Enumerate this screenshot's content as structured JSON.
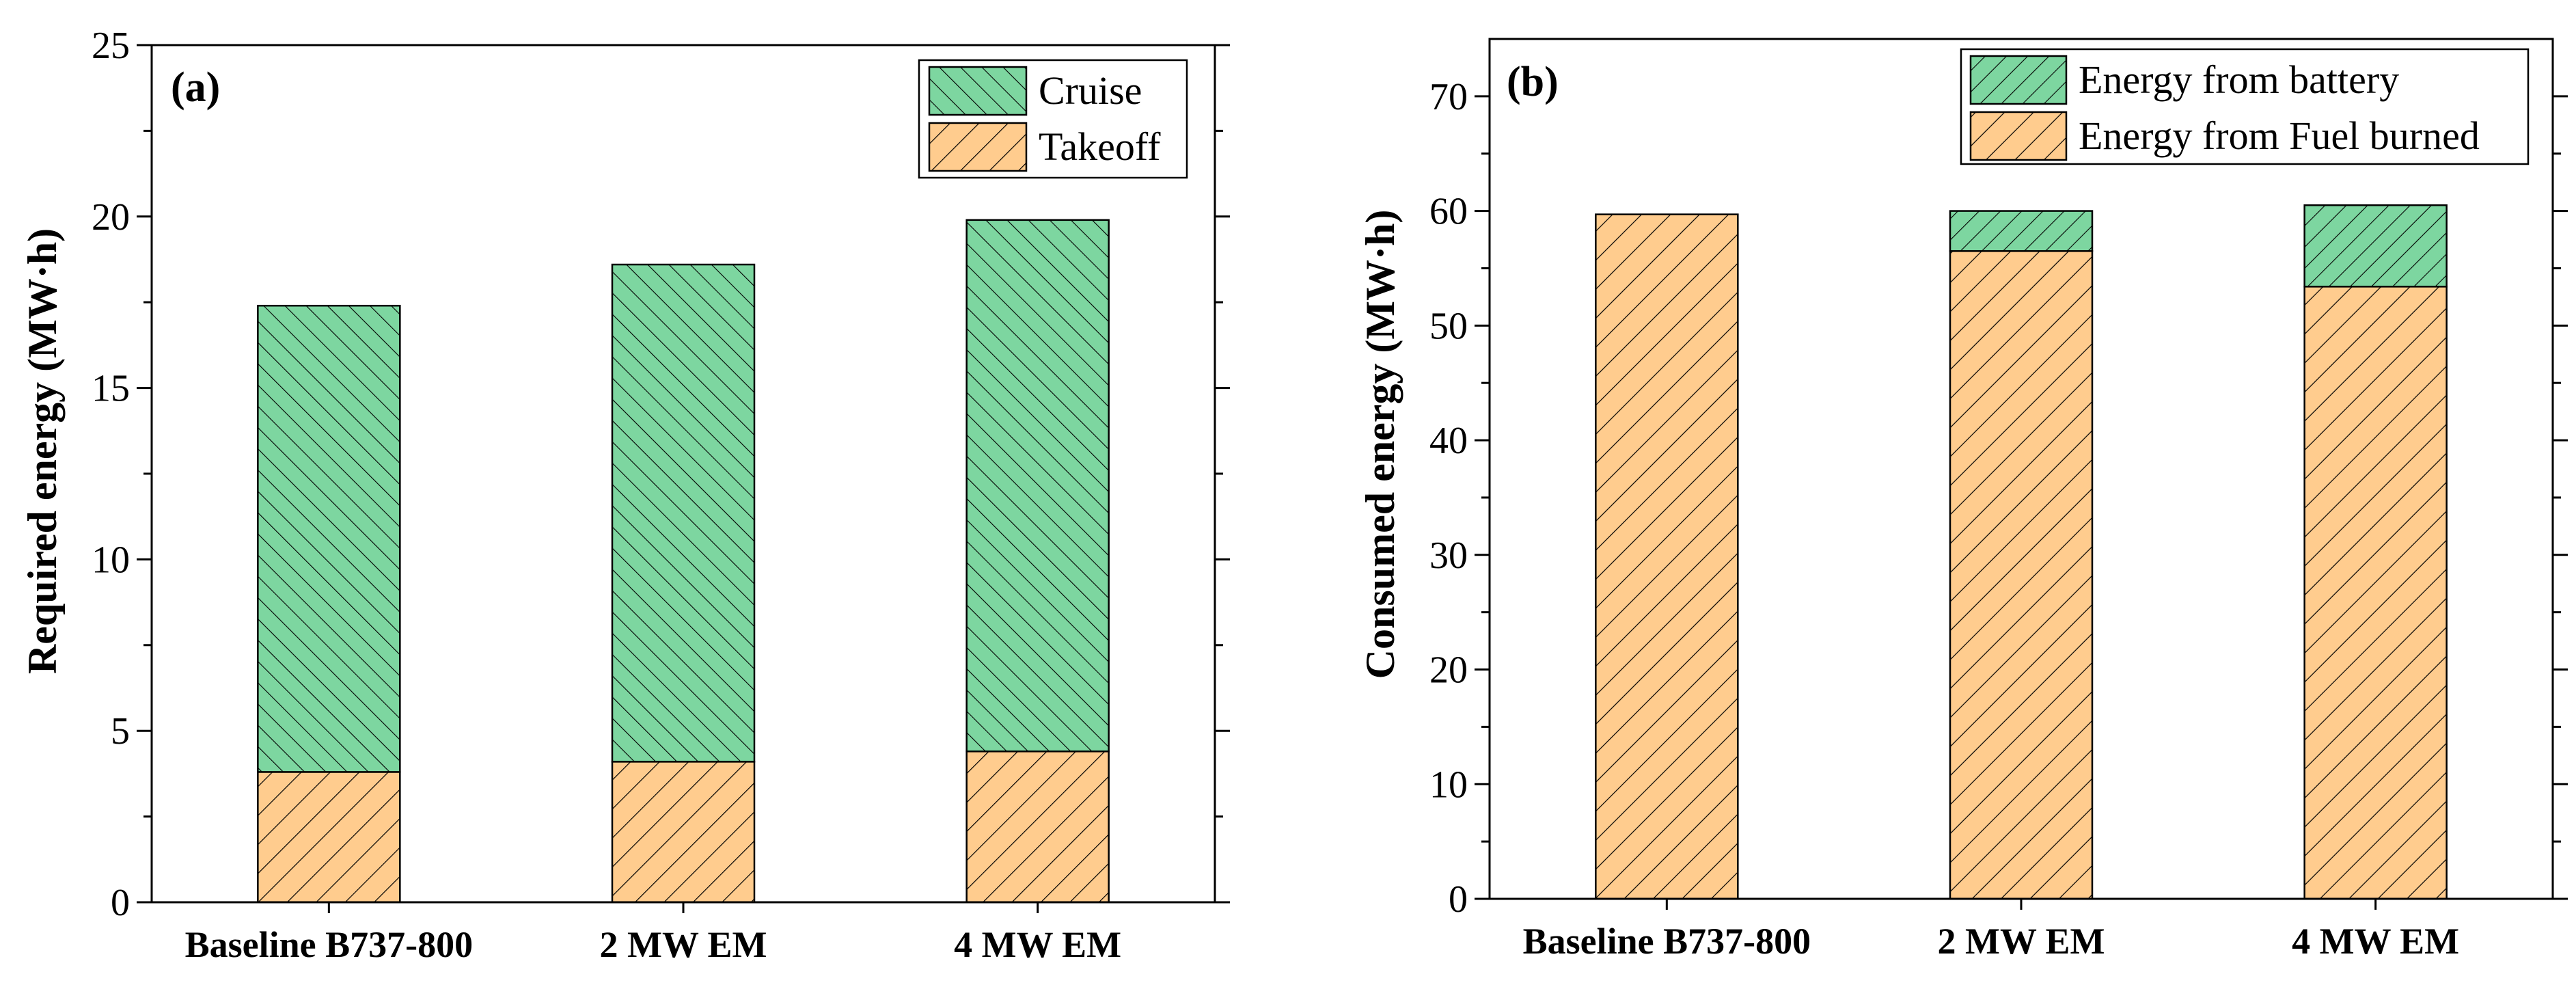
{
  "colors": {
    "green": "#7dd6a0",
    "orange": "#ffcc8e",
    "stroke": "#000000"
  },
  "chart_data": [
    {
      "type": "bar",
      "stacked": true,
      "panel": "(a)",
      "ylabel": "Required energy (MW·h)",
      "xlabel": "",
      "ylim": [
        0,
        25
      ],
      "yticks": [
        0,
        5,
        10,
        15,
        20,
        25
      ],
      "categories": [
        "Baseline B737-800",
        "2 MW EM",
        "4 MW EM"
      ],
      "series": [
        {
          "name": "Takeoff",
          "values": [
            3.8,
            4.1,
            4.4
          ],
          "color": "#ffcc8e",
          "hatch": "fwd"
        },
        {
          "name": "Cruise",
          "values": [
            13.6,
            14.5,
            15.5
          ],
          "color": "#7dd6a0",
          "hatch": "back"
        }
      ],
      "legend": [
        "Cruise",
        "Takeoff"
      ],
      "legend_position": "top-right"
    },
    {
      "type": "bar",
      "stacked": true,
      "panel": "(b)",
      "ylabel": "Consumed energy (MW·h)",
      "xlabel": "",
      "ylim": [
        0,
        75
      ],
      "yticks": [
        0,
        10,
        20,
        30,
        40,
        50,
        60,
        70
      ],
      "categories": [
        "Baseline B737-800",
        "2 MW EM",
        "4 MW EM"
      ],
      "series": [
        {
          "name": "Energy from Fuel burned",
          "values": [
            59.7,
            56.5,
            53.4
          ],
          "color": "#ffcc8e",
          "hatch": "fwd"
        },
        {
          "name": "Energy from battery",
          "values": [
            0,
            3.5,
            7.1
          ],
          "color": "#7dd6a0",
          "hatch": "fwd"
        }
      ],
      "legend": [
        "Energy from battery",
        "Energy from Fuel burned"
      ],
      "legend_position": "top-right"
    }
  ]
}
